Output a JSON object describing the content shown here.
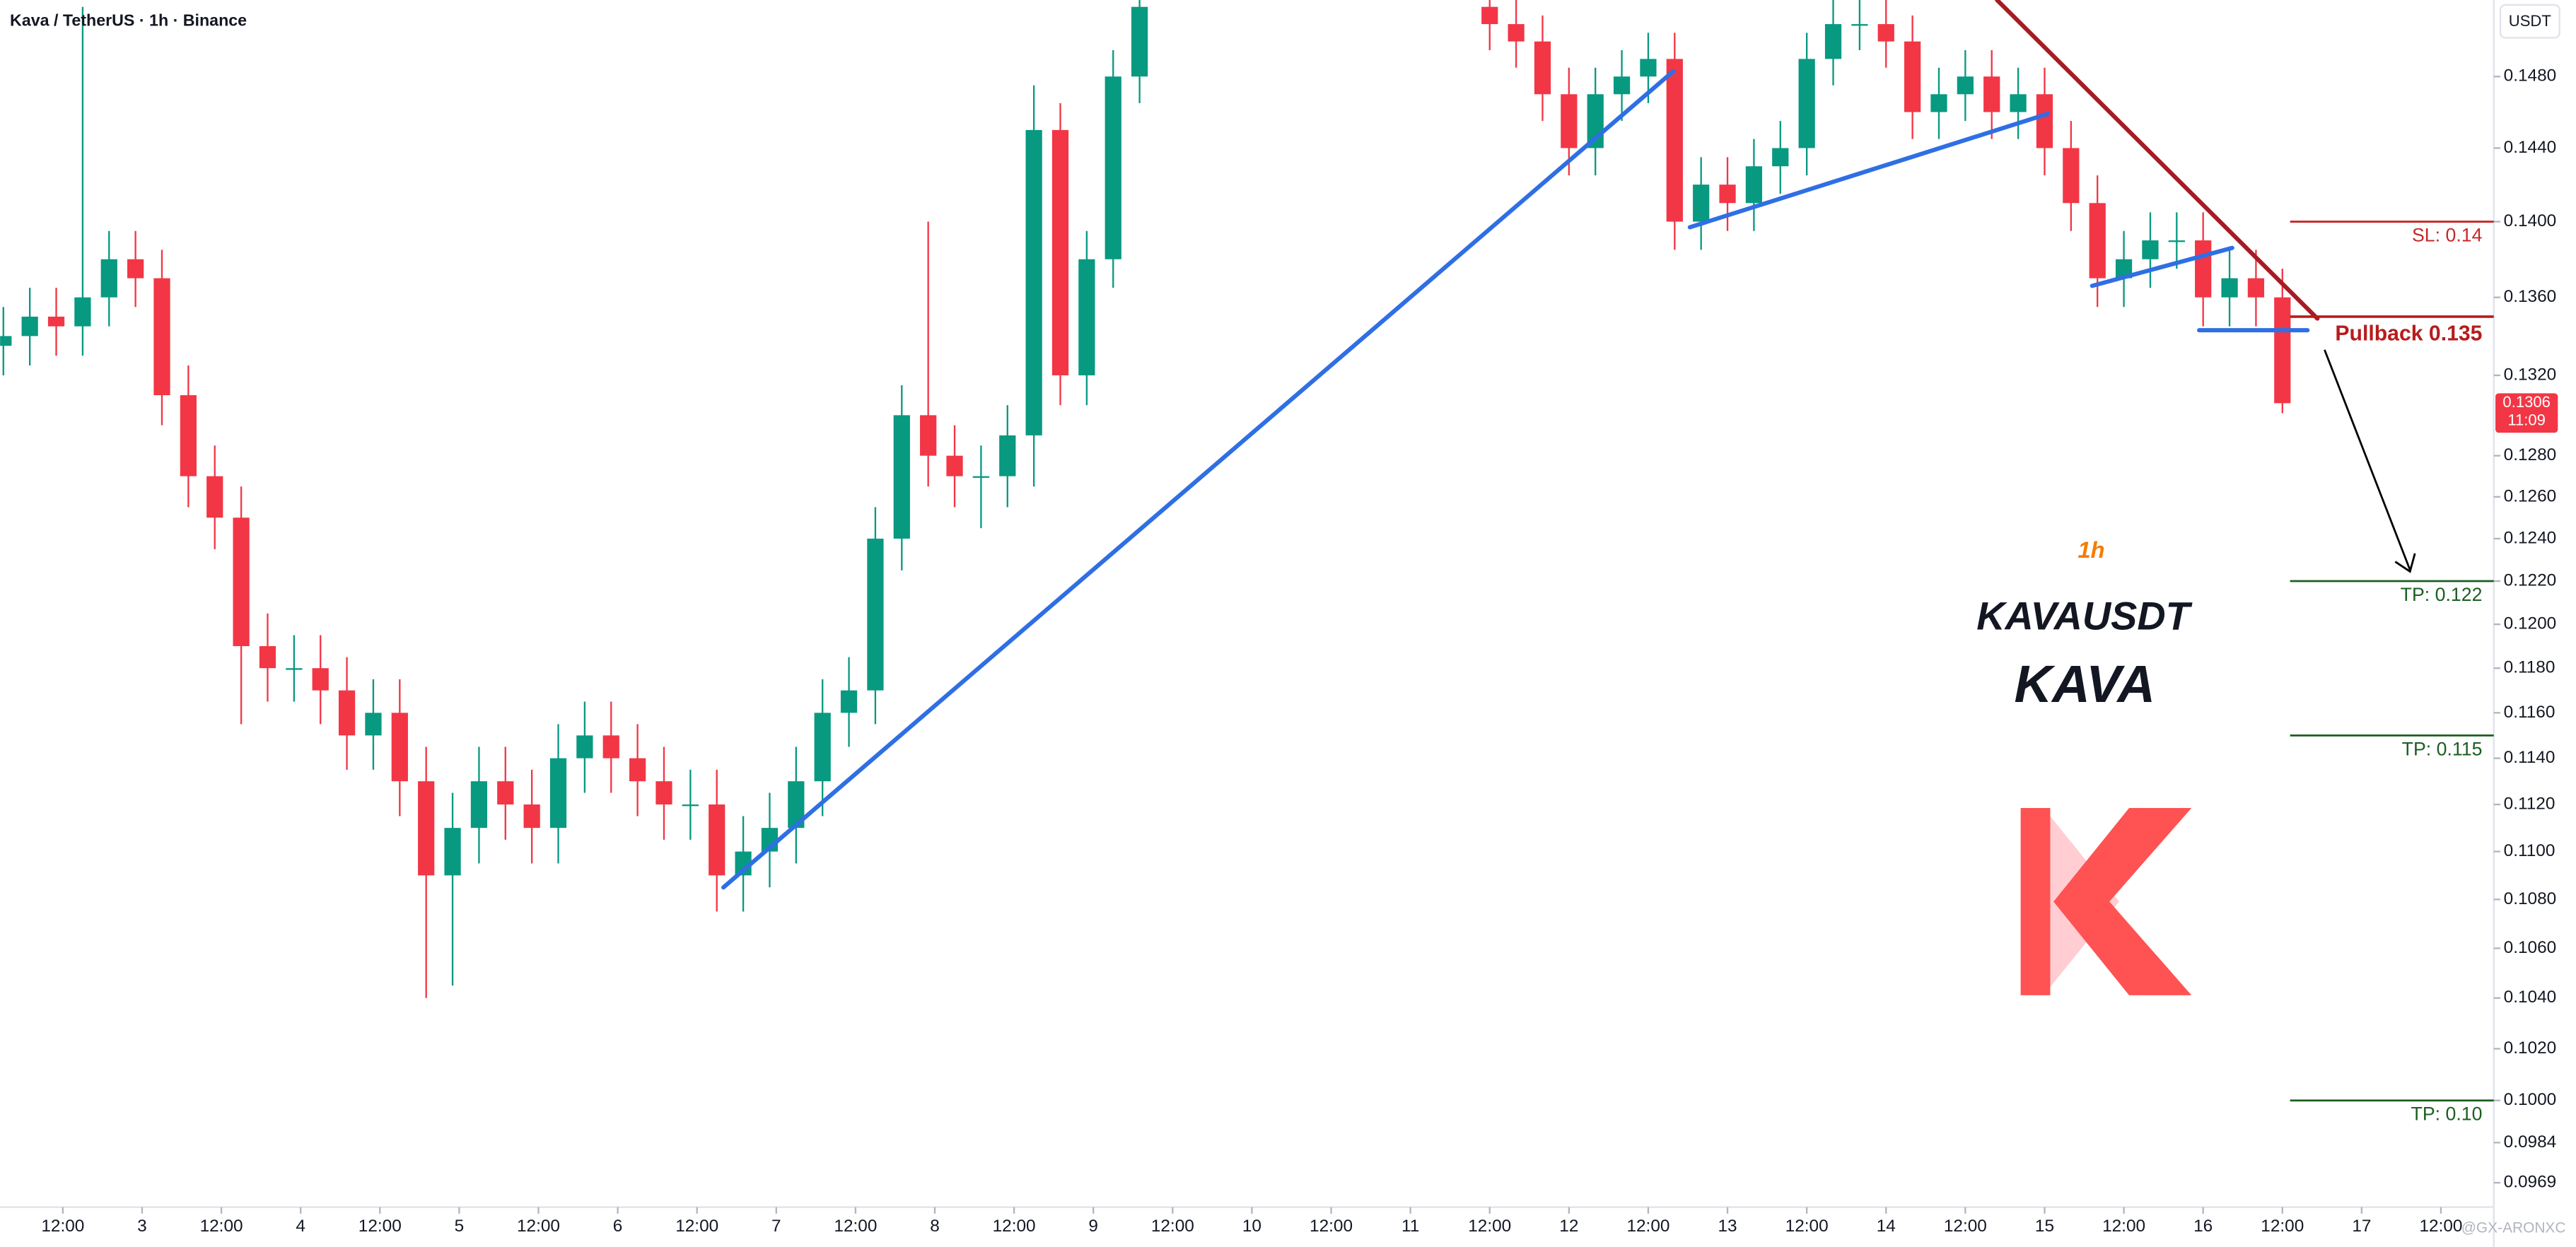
{
  "chart_data": {
    "type": "candlestick",
    "title": "Kava / TetherUS · 1h · Binance",
    "currency": "USDT",
    "countdown": "11:09",
    "watermark": "@GX-ARONXC",
    "annotations": [
      "1h",
      "KAVAUSDT",
      "KAVA"
    ],
    "log_scale": true,
    "grid": false,
    "up_color": "#089981",
    "down_color": "#f23645",
    "xlim": [
      2.5,
      380
    ],
    "ylim": [
      0.096,
      0.1524
    ],
    "x": [
      3,
      7,
      11,
      15,
      19,
      23,
      27,
      31,
      35,
      39,
      43,
      47,
      51,
      55,
      59,
      63,
      67,
      71,
      75,
      79,
      83,
      87,
      91,
      95,
      99,
      103,
      107,
      111,
      115,
      119,
      123,
      127,
      131,
      135,
      139,
      143,
      147,
      151,
      155,
      159,
      163,
      167,
      171,
      175,
      228,
      232,
      236,
      240,
      244,
      248,
      252,
      256,
      260,
      264,
      268,
      272,
      276,
      280,
      284,
      288,
      292,
      296,
      300,
      304,
      308,
      312,
      316,
      320,
      324,
      328,
      332,
      336,
      340,
      344,
      348
    ],
    "open": [
      0.1335,
      0.134,
      0.135,
      0.1345,
      0.136,
      0.138,
      0.137,
      0.131,
      0.127,
      0.125,
      0.119,
      0.118,
      0.118,
      0.117,
      0.115,
      0.116,
      0.113,
      0.109,
      0.111,
      0.113,
      0.112,
      0.111,
      0.114,
      0.115,
      0.114,
      0.113,
      0.112,
      0.112,
      0.109,
      0.11,
      0.111,
      0.113,
      0.116,
      0.117,
      0.124,
      0.13,
      0.128,
      0.127,
      0.127,
      0.129,
      0.145,
      0.132,
      0.138,
      0.148,
      0.152,
      0.151,
      0.15,
      0.147,
      0.144,
      0.147,
      0.148,
      0.149,
      0.14,
      0.142,
      0.141,
      0.143,
      0.144,
      0.149,
      0.151,
      0.151,
      0.15,
      0.146,
      0.147,
      0.148,
      0.146,
      0.147,
      0.144,
      0.141,
      0.137,
      0.138,
      0.139,
      0.139,
      0.136,
      0.137,
      0.136
    ],
    "high": [
      0.1355,
      0.1365,
      0.1365,
      0.152,
      0.1395,
      0.1395,
      0.1385,
      0.1325,
      0.1285,
      0.1265,
      0.1205,
      0.1195,
      0.1195,
      0.1185,
      0.1175,
      0.1175,
      0.1145,
      0.1125,
      0.1145,
      0.1145,
      0.1135,
      0.1155,
      0.1165,
      0.1165,
      0.1155,
      0.1145,
      0.1135,
      0.1135,
      0.1115,
      0.1125,
      0.1145,
      0.1175,
      0.1185,
      0.1255,
      0.1315,
      0.14,
      0.1295,
      0.1285,
      0.1305,
      0.1475,
      0.1465,
      0.1395,
      0.1495,
      0.1535,
      0.1535,
      0.1525,
      0.1515,
      0.1485,
      0.1485,
      0.1495,
      0.1505,
      0.1505,
      0.1435,
      0.1435,
      0.1445,
      0.1455,
      0.1505,
      0.1525,
      0.1525,
      0.1525,
      0.1515,
      0.1485,
      0.1495,
      0.1495,
      0.1485,
      0.1485,
      0.1455,
      0.1425,
      0.1395,
      0.1405,
      0.1405,
      0.1405,
      0.1385,
      0.1385,
      0.1375
    ],
    "low": [
      0.132,
      0.1325,
      0.133,
      0.133,
      0.1345,
      0.1355,
      0.1295,
      0.1255,
      0.1235,
      0.1155,
      0.1165,
      0.1165,
      0.1155,
      0.1135,
      0.1135,
      0.1115,
      0.104,
      0.1045,
      0.1095,
      0.1105,
      0.1095,
      0.1095,
      0.1125,
      0.1125,
      0.1115,
      0.1105,
      0.1105,
      0.1075,
      0.1075,
      0.1085,
      0.1095,
      0.1115,
      0.1145,
      0.1155,
      0.1225,
      0.1265,
      0.1255,
      0.1245,
      0.1255,
      0.1265,
      0.1305,
      0.1305,
      0.1365,
      0.1465,
      0.1495,
      0.1485,
      0.1455,
      0.1425,
      0.1425,
      0.1455,
      0.1465,
      0.1385,
      0.1385,
      0.1395,
      0.1395,
      0.1415,
      0.1425,
      0.1475,
      0.1495,
      0.1485,
      0.1445,
      0.1445,
      0.1455,
      0.1445,
      0.1445,
      0.1425,
      0.1395,
      0.1355,
      0.1355,
      0.1365,
      0.1375,
      0.1345,
      0.1345,
      0.1345,
      0.1301
    ],
    "close": [
      0.134,
      0.135,
      0.1345,
      0.136,
      0.138,
      0.137,
      0.131,
      0.127,
      0.125,
      0.119,
      0.118,
      0.118,
      0.117,
      0.115,
      0.116,
      0.113,
      0.109,
      0.111,
      0.113,
      0.112,
      0.111,
      0.114,
      0.115,
      0.114,
      0.113,
      0.112,
      0.112,
      0.109,
      0.11,
      0.111,
      0.113,
      0.116,
      0.117,
      0.124,
      0.13,
      0.128,
      0.127,
      0.127,
      0.129,
      0.145,
      0.132,
      0.138,
      0.148,
      0.152,
      0.151,
      0.15,
      0.147,
      0.144,
      0.147,
      0.148,
      0.149,
      0.14,
      0.142,
      0.141,
      0.143,
      0.144,
      0.149,
      0.151,
      0.151,
      0.15,
      0.146,
      0.147,
      0.148,
      0.146,
      0.147,
      0.144,
      0.141,
      0.137,
      0.138,
      0.139,
      0.139,
      0.136,
      0.137,
      0.136,
      0.1306
    ],
    "yticks": [
      {
        "value": 0.148,
        "label": "0.1480"
      },
      {
        "value": 0.144,
        "label": "0.1440"
      },
      {
        "value": 0.14,
        "label": "0.1400"
      },
      {
        "value": 0.136,
        "label": "0.1360"
      },
      {
        "value": 0.132,
        "label": "0.1320"
      },
      {
        "value": 0.128,
        "label": "0.1280"
      },
      {
        "value": 0.126,
        "label": "0.1260"
      },
      {
        "value": 0.124,
        "label": "0.1240"
      },
      {
        "value": 0.122,
        "label": "0.1220"
      },
      {
        "value": 0.12,
        "label": "0.1200"
      },
      {
        "value": 0.118,
        "label": "0.1180"
      },
      {
        "value": 0.116,
        "label": "0.1160"
      },
      {
        "value": 0.114,
        "label": "0.1140"
      },
      {
        "value": 0.112,
        "label": "0.1120"
      },
      {
        "value": 0.11,
        "label": "0.1100"
      },
      {
        "value": 0.108,
        "label": "0.1080"
      },
      {
        "value": 0.106,
        "label": "0.1060"
      },
      {
        "value": 0.104,
        "label": "0.1040"
      },
      {
        "value": 0.102,
        "label": "0.1020"
      },
      {
        "value": 0.1,
        "label": "0.1000"
      },
      {
        "value": 0.0984,
        "label": "0.0984"
      },
      {
        "value": 0.0969,
        "label": "0.0969"
      }
    ],
    "xticks": [
      {
        "value": 12,
        "label": "12:00"
      },
      {
        "value": 24,
        "label": "3"
      },
      {
        "value": 36,
        "label": "12:00"
      },
      {
        "value": 48,
        "label": "4"
      },
      {
        "value": 60,
        "label": "12:00"
      },
      {
        "value": 72,
        "label": "5"
      },
      {
        "value": 84,
        "label": "12:00"
      },
      {
        "value": 96,
        "label": "6"
      },
      {
        "value": 108,
        "label": "12:00"
      },
      {
        "value": 120,
        "label": "7"
      },
      {
        "value": 132,
        "label": "12:00"
      },
      {
        "value": 144,
        "label": "8"
      },
      {
        "value": 156,
        "label": "12:00"
      },
      {
        "value": 168,
        "label": "9"
      },
      {
        "value": 180,
        "label": "12:00"
      },
      {
        "value": 192,
        "label": "10"
      },
      {
        "value": 204,
        "label": "12:00"
      },
      {
        "value": 216,
        "label": "11"
      },
      {
        "value": 228,
        "label": "12:00"
      },
      {
        "value": 240,
        "label": "12"
      },
      {
        "value": 252,
        "label": "12:00"
      },
      {
        "value": 264,
        "label": "13"
      },
      {
        "value": 276,
        "label": "12:00"
      },
      {
        "value": 288,
        "label": "14"
      },
      {
        "value": 300,
        "label": "12:00"
      },
      {
        "value": 312,
        "label": "15"
      },
      {
        "value": 324,
        "label": "12:00"
      },
      {
        "value": 336,
        "label": "16"
      },
      {
        "value": 348,
        "label": "12:00"
      },
      {
        "value": 360,
        "label": "17"
      },
      {
        "value": 372,
        "label": "12:00"
      }
    ],
    "levels": [
      {
        "label": "SL: 0.14",
        "value": 0.14,
        "color": "#c62828"
      },
      {
        "label": "Pullback 0.135",
        "value": 0.135,
        "color": "#b71c1c"
      },
      {
        "label": "TP: 0.122",
        "value": 0.122,
        "color": "#1b5e20"
      },
      {
        "label": "TP: 0.115",
        "value": 0.115,
        "color": "#1b5e20"
      },
      {
        "label": "TP: 0.10",
        "value": 0.1,
        "color": "#1b5e20"
      }
    ],
    "trendlines": [
      {
        "color": "#2f6fe4",
        "x": [
          112.0,
          255.8
        ],
        "y": [
          0.1085,
          0.1483
        ]
      },
      {
        "color": "#2f6fe4",
        "x": [
          258.3,
          312.5
        ],
        "y": [
          0.1397,
          0.1459
        ]
      },
      {
        "color": "#2f6fe4",
        "x": [
          319.2,
          340.4
        ],
        "y": [
          0.1366,
          0.1386
        ]
      },
      {
        "color": "#2f6fe4",
        "x": [
          335.4,
          351.8
        ],
        "y": [
          0.1343,
          0.1343
        ]
      },
      {
        "color": "#a61c24",
        "x": [
          304.8,
          353.3
        ],
        "y": [
          0.1524,
          0.1349
        ]
      }
    ]
  }
}
